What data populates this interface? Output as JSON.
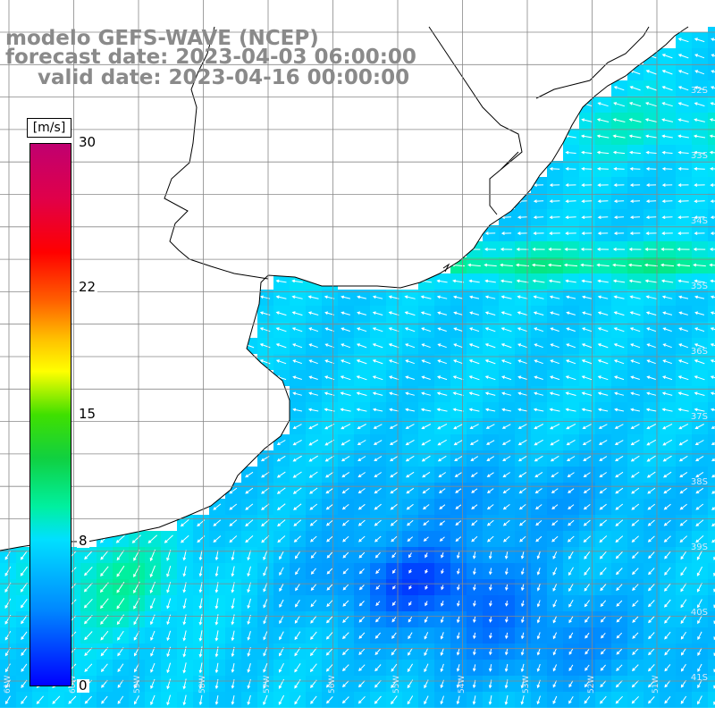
{
  "title": {
    "line1": "modelo GEFS-WAVE (NCEP)",
    "line2": "forecast date: 2023-04-03 06:00:00",
    "line3": "valid date: 2023-04-16 00:00:00"
  },
  "colorbar": {
    "unit": "[m/s]",
    "ticks": [
      "30",
      "22",
      "15",
      "8",
      "0"
    ],
    "tick_values": [
      30,
      22,
      15,
      8,
      0
    ],
    "range": [
      0,
      30
    ]
  },
  "lat_labels": [
    "32S",
    "33S",
    "34S",
    "35S",
    "36S",
    "37S",
    "38S",
    "39S",
    "40S",
    "41S"
  ],
  "lon_labels": [
    "61W",
    "60W",
    "59W",
    "58W",
    "57W",
    "56W",
    "55W",
    "54W",
    "53W",
    "52W",
    "51W"
  ],
  "colors": {
    "land": "#ffffff",
    "coast": "#000000",
    "grid": "#888888",
    "arrow": "#ffffff",
    "title": "#8a8a8a"
  },
  "field_description": "wind speed and direction vectors over ocean, mostly 5-12 m/s"
}
